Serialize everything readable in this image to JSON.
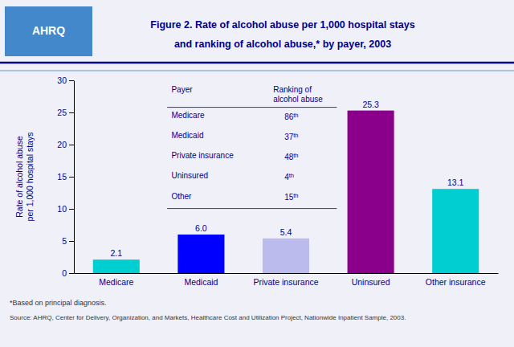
{
  "chart_data": {
    "type": "bar",
    "title": "Figure 2. Rate of alcohol abuse per 1,000 hospital stays",
    "subtitle": "and ranking of alcohol abuse,* by payer, 2003",
    "y_label": "Rate of alcohol abuse\nper 1,000 hospital stays",
    "categories": [
      "Medicare",
      "Medicaid",
      "Private insurance",
      "Uninsured",
      "Other insurance"
    ],
    "values": [
      2.1,
      6.0,
      5.4,
      25.3,
      13.1
    ],
    "value_labels": [
      "2.1",
      "6.0",
      "5.4",
      "25.3",
      "13.1"
    ],
    "data_labels": true,
    "colors": [
      "#00CED1",
      "#0000FF",
      "#BBBBEE",
      "#8B008B",
      "#00CED1"
    ],
    "ylim": [
      0,
      30
    ],
    "yticks": [
      0,
      5,
      10,
      15,
      20,
      25,
      30
    ],
    "grid": false,
    "table": {
      "columns": [
        "Payer",
        "Ranking of\nalcohol abuse"
      ],
      "rows": [
        [
          "Medicare",
          "86th"
        ],
        [
          "Medicaid",
          "37th"
        ],
        [
          "Private insurance",
          "48th"
        ],
        [
          "Uninsured",
          "4th"
        ],
        [
          "Other",
          "15th"
        ]
      ]
    },
    "notes": [
      "*Based on principal diagnosis.",
      "Source: AHRQ, Center for Delivery, Organization, and Markets, Healthcare Cost and Utilization Project, Nationwide Inpatient Sample, 2003."
    ],
    "annotations": [
      "AHRQ"
    ]
  }
}
